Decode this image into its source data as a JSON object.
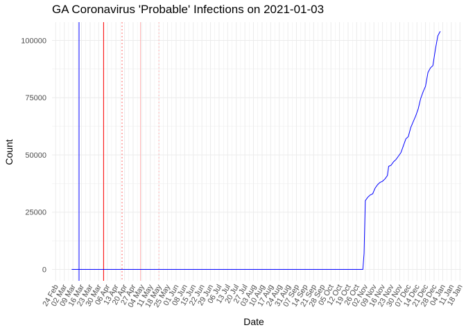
{
  "chart_data": {
    "type": "line",
    "title": "GA Coronavirus 'Probable' Infections on 2021-01-03",
    "xlabel": "Date",
    "ylabel": "Count",
    "x_range": [
      "2020-02-24",
      "2021-01-18"
    ],
    "ylim": [
      -5000,
      108000
    ],
    "y_ticks": [
      0,
      25000,
      50000,
      75000,
      100000
    ],
    "y_tick_labels": [
      "0",
      "25000",
      "50000",
      "75000",
      "100000"
    ],
    "x_tick_labels": [
      "24 Feb",
      "02 Mar",
      "09 Mar",
      "16 Mar",
      "23 Mar",
      "30 Mar",
      "06 Apr",
      "13 Apr",
      "20 Apr",
      "27 Apr",
      "04 May",
      "11 May",
      "18 May",
      "25 May",
      "01 Jun",
      "08 Jun",
      "15 Jun",
      "22 Jun",
      "29 Jun",
      "06 Jul",
      "13 Jul",
      "20 Jul",
      "27 Jul",
      "03 Aug",
      "10 Aug",
      "17 Aug",
      "24 Aug",
      "31 Aug",
      "07 Sep",
      "14 Sep",
      "21 Sep",
      "28 Sep",
      "05 Oct",
      "12 Oct",
      "19 Oct",
      "26 Oct",
      "02 Nov",
      "09 Nov",
      "16 Nov",
      "23 Nov",
      "30 Nov",
      "07 Dec",
      "14 Dec",
      "21 Dec",
      "28 Dec",
      "04 Jan",
      "11 Jan",
      "18 Jan"
    ],
    "grid": true,
    "reference_lines": [
      {
        "date": "2020-03-14",
        "color": "#0000ff",
        "style": "solid"
      },
      {
        "date": "2020-04-03",
        "color": "#ff0000",
        "style": "solid"
      },
      {
        "date": "2020-04-18",
        "color": "#ff6666",
        "style": "dotted"
      },
      {
        "date": "2020-05-03",
        "color": "#ffb3b3",
        "style": "solid"
      },
      {
        "date": "2020-05-18",
        "color": "#ffb3b3",
        "style": "dotted"
      }
    ],
    "series": [
      {
        "color": "#0000ff",
        "points": [
          [
            "2020-03-08",
            0
          ],
          [
            "2020-10-31",
            0
          ],
          [
            "2020-11-01",
            7000
          ],
          [
            "2020-11-02",
            30000
          ],
          [
            "2020-11-04",
            31500
          ],
          [
            "2020-11-06",
            32500
          ],
          [
            "2020-11-08",
            33000
          ],
          [
            "2020-11-10",
            35500
          ],
          [
            "2020-11-12",
            37000
          ],
          [
            "2020-11-14",
            38000
          ],
          [
            "2020-11-16",
            38500
          ],
          [
            "2020-11-18",
            39500
          ],
          [
            "2020-11-20",
            41000
          ],
          [
            "2020-11-21",
            45000
          ],
          [
            "2020-11-23",
            45500
          ],
          [
            "2020-11-25",
            47000
          ],
          [
            "2020-11-27",
            48000
          ],
          [
            "2020-11-29",
            49500
          ],
          [
            "2020-12-01",
            51000
          ],
          [
            "2020-12-03",
            54000
          ],
          [
            "2020-12-05",
            57000
          ],
          [
            "2020-12-07",
            58000
          ],
          [
            "2020-12-09",
            62000
          ],
          [
            "2020-12-11",
            64500
          ],
          [
            "2020-12-13",
            67000
          ],
          [
            "2020-12-15",
            70000
          ],
          [
            "2020-12-17",
            74500
          ],
          [
            "2020-12-19",
            77500
          ],
          [
            "2020-12-21",
            80000
          ],
          [
            "2020-12-23",
            86000
          ],
          [
            "2020-12-25",
            88000
          ],
          [
            "2020-12-27",
            89000
          ],
          [
            "2020-12-29",
            96000
          ],
          [
            "2020-12-31",
            102000
          ],
          [
            "2021-01-02",
            104000
          ]
        ]
      }
    ]
  }
}
